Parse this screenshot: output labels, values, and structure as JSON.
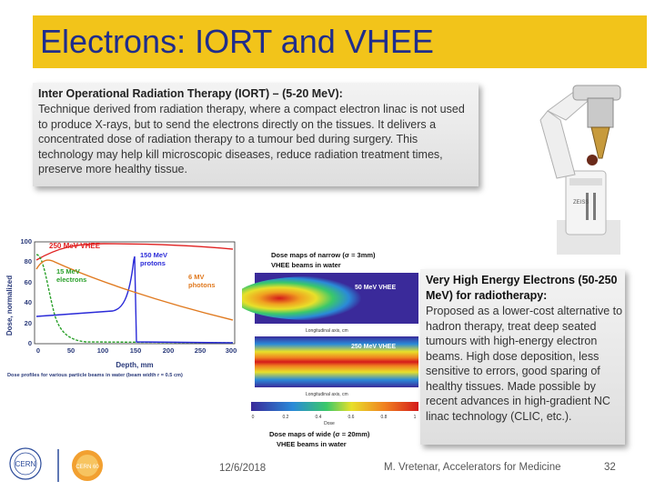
{
  "slide": {
    "title": "Electrons: IORT and VHEE",
    "iort": {
      "heading": "Inter Operational Radiation Therapy (IORT) – (5-20 MeV):",
      "body": "Technique derived from radiation therapy, where a compact electron linac is not used to produce X-rays, but to send the electrons directly on the tissues. It delivers a concentrated dose of radiation therapy to a tumour bed during surgery. This technology may help kill microscopic diseases, reduce radiation treatment times, preserve more healthy tissue."
    },
    "vhee": {
      "heading": "Very High Energy Electrons (50-250 MeV) for radiotherapy:",
      "body": "Proposed as a lower-cost alternative to hadron therapy, treat deep seated tumours with high-energy electron beams. High dose deposition, less sensitive to errors, good sparing of healthy tissues. Made possible by recent advances in high-gradient NC linac technology (CLIC, etc.)."
    },
    "footer": {
      "date": "12/6/2018",
      "author": "M. Vretenar, Accelerators for Medicine",
      "page": "32"
    }
  },
  "depth_dose_figure": {
    "ylabel": "Dose, normalized",
    "xlabel": "Depth, mm",
    "caption": "Dose profiles for various particle beams in water (beam width r = 0.5 cm)",
    "yticks": [
      "0",
      "20",
      "40",
      "60",
      "80",
      "100"
    ],
    "xticks": [
      "0",
      "50",
      "100",
      "150",
      "200",
      "250",
      "300"
    ],
    "labels": {
      "vhee": "250 MeV VHEE",
      "protons_1": "150 MeV",
      "protons_2": "protons",
      "electrons_1": "15 MeV",
      "electrons_2": "electrons",
      "photons_1": "6 MV",
      "photons_2": "photons"
    },
    "colors": {
      "vhee": "#e02020",
      "protons": "#2a2ad8",
      "electrons": "#2aa02a",
      "photons": "#e07a20"
    }
  },
  "dose_maps": {
    "top_title": "Dose maps of narrow (σ = 3mm)",
    "top_subtitle": "VHEE beams in water",
    "top_tag": "50 MeV VHEE",
    "bottom_tag": "250 MeV VHEE",
    "bottom_title": "Dose maps of wide (σ = 20mm)",
    "bottom_subtitle": "VHEE beams in water",
    "axis_label": "Longitudinal axis, cm",
    "dose_label": "Dose",
    "colorbar_ticks": [
      "0",
      "0.2",
      "0.4",
      "0.6",
      "0.8",
      "1"
    ]
  },
  "logos": {
    "cern": "CERN",
    "anniversary": "CERN 60"
  }
}
